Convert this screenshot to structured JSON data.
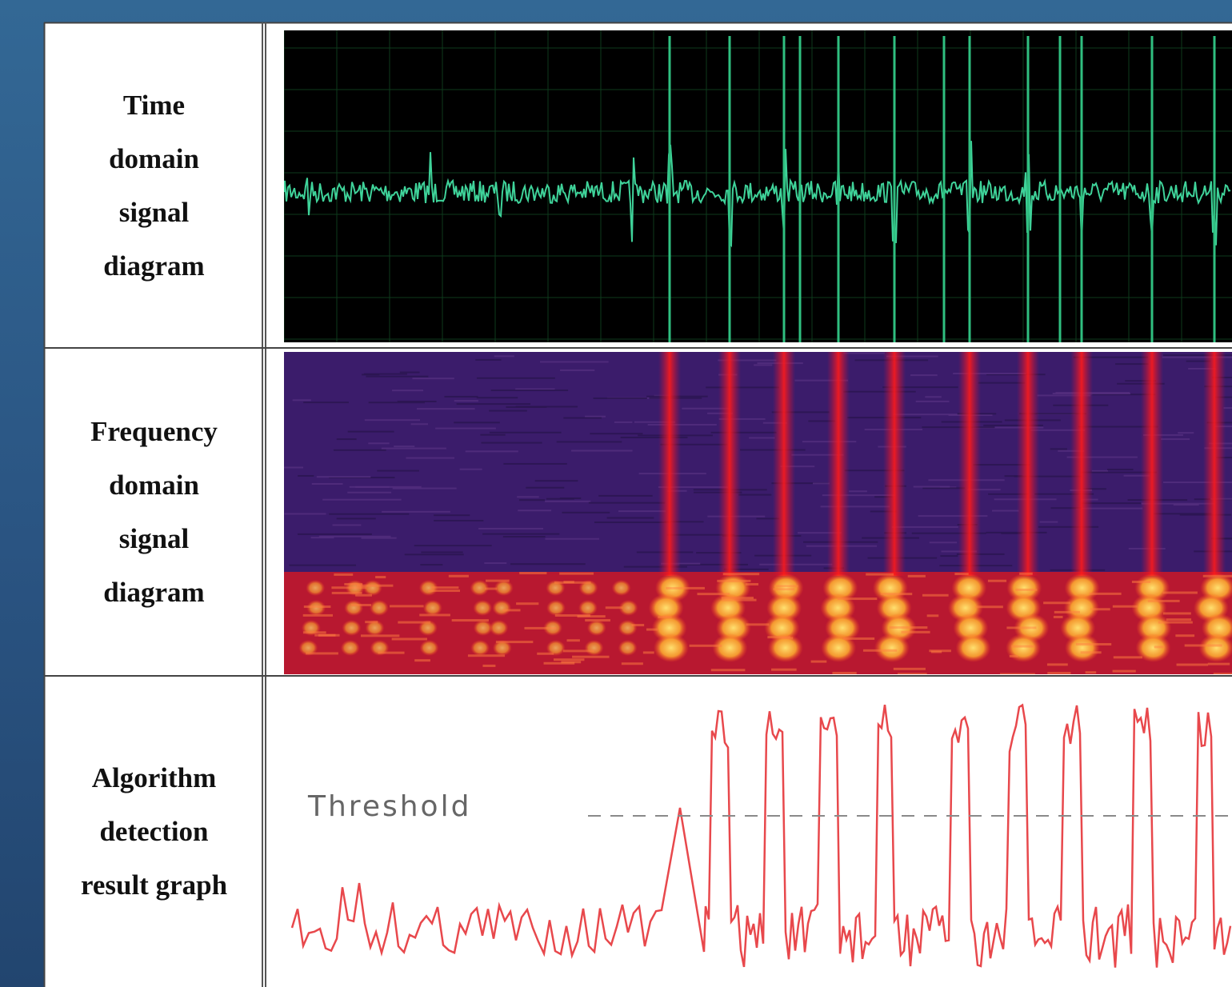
{
  "rows": [
    {
      "label_lines": [
        "Time",
        "domain",
        "signal",
        "diagram"
      ]
    },
    {
      "label_lines": [
        "Frequency",
        "domain",
        "signal",
        "diagram"
      ]
    },
    {
      "label_lines": [
        "Algorithm",
        "detection",
        "result graph"
      ]
    }
  ],
  "threshold_label": "Threshold"
}
